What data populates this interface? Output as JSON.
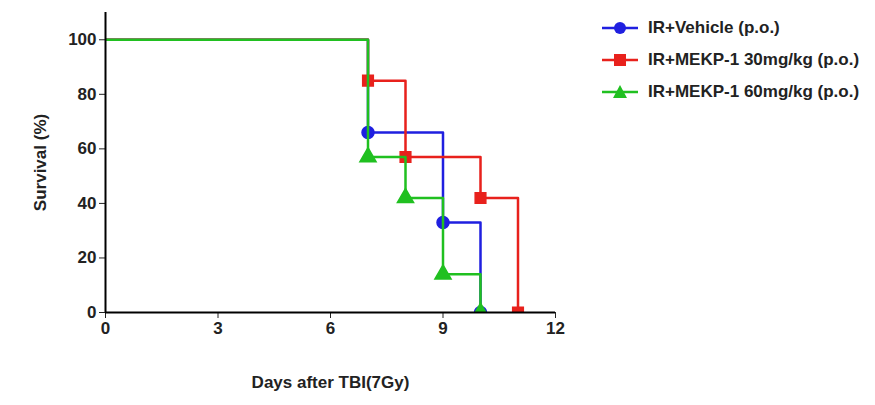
{
  "chart_data": {
    "type": "line",
    "x_label": "Days after TBI(7Gy)",
    "y_label": "Survival (%)",
    "xlim": [
      0,
      12
    ],
    "xticks": [
      0,
      3,
      6,
      9,
      12
    ],
    "ylim": [
      0,
      110
    ],
    "yticks": [
      0,
      20,
      40,
      60,
      80,
      100
    ],
    "grid": false,
    "legend": "right",
    "line_style": "step",
    "series": [
      {
        "name": "IR+Vehicle (p.o.)",
        "color": "#1f1fe0",
        "marker": "circle",
        "x": [
          0,
          7,
          9,
          10
        ],
        "values": [
          100,
          66,
          33,
          0
        ]
      },
      {
        "name": "IR+MEKP-1 30mg/kg (p.o.)",
        "color": "#e8211c",
        "marker": "square",
        "x": [
          0,
          7,
          8,
          10,
          11
        ],
        "values": [
          100,
          85,
          57,
          42,
          0
        ]
      },
      {
        "name": "IR+MEKP-1 60mg/kg (p.o.)",
        "color": "#20c020",
        "marker": "triangle",
        "x": [
          0,
          7,
          8,
          9,
          10
        ],
        "values": [
          100,
          57,
          42,
          14,
          0
        ]
      }
    ]
  }
}
